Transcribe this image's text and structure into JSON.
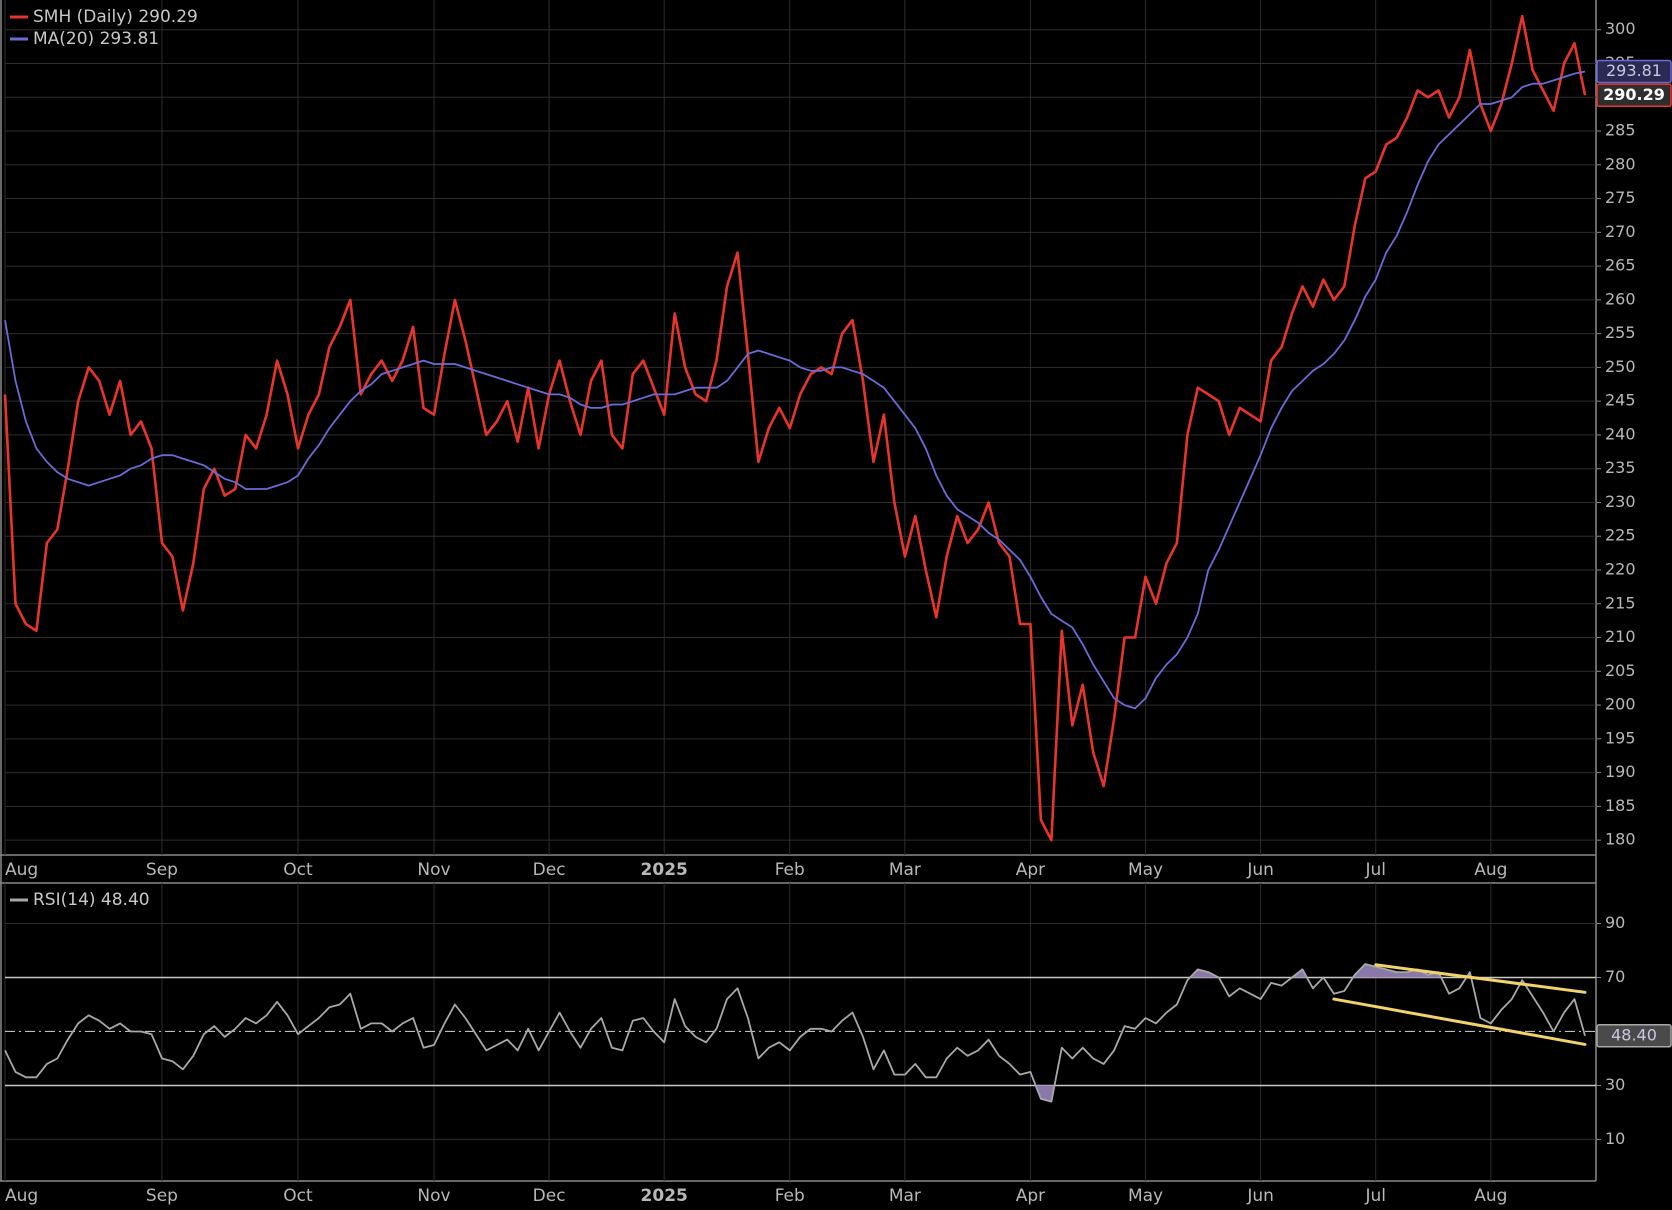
{
  "chart_data": [
    {
      "type": "line",
      "categories": [
        "Aug",
        null,
        null,
        null,
        null,
        null,
        null,
        null,
        null,
        null,
        null,
        null,
        null,
        null,
        null,
        "Sep",
        null,
        null,
        null,
        null,
        null,
        null,
        null,
        null,
        null,
        null,
        null,
        null,
        "Oct",
        null,
        null,
        null,
        null,
        null,
        null,
        null,
        null,
        null,
        null,
        null,
        null,
        "Nov",
        null,
        null,
        null,
        null,
        null,
        null,
        null,
        null,
        null,
        null,
        "Dec",
        null,
        null,
        null,
        null,
        null,
        null,
        null,
        null,
        null,
        null,
        "2025",
        null,
        null,
        null,
        null,
        null,
        null,
        null,
        null,
        null,
        null,
        null,
        "Feb",
        null,
        null,
        null,
        null,
        null,
        null,
        null,
        null,
        null,
        null,
        "Mar",
        null,
        null,
        null,
        null,
        null,
        null,
        null,
        null,
        null,
        null,
        null,
        "Apr",
        null,
        null,
        null,
        null,
        null,
        null,
        null,
        null,
        null,
        null,
        "May",
        null,
        null,
        null,
        null,
        null,
        null,
        null,
        null,
        null,
        null,
        "Jun",
        null,
        null,
        null,
        null,
        null,
        null,
        null,
        null,
        null,
        null,
        "Jul",
        null,
        null,
        null,
        null,
        null,
        null,
        null,
        null,
        null,
        null,
        "Aug",
        null,
        null,
        null,
        null,
        null,
        null,
        null,
        null,
        null
      ],
      "series": [
        {
          "name": "SMH (Daily)",
          "color": "#e8352b",
          "last_label": "290.29",
          "values": [
            246,
            215,
            212,
            211,
            224,
            226,
            235,
            245,
            250,
            248,
            243,
            248,
            240,
            242,
            238,
            224,
            222,
            214,
            221,
            232,
            235,
            231,
            232,
            240,
            238,
            243,
            251,
            246,
            238,
            243,
            246,
            253,
            256,
            260,
            246,
            249,
            251,
            248,
            251,
            256,
            244,
            243,
            252,
            260,
            254,
            247,
            240,
            242,
            245,
            239,
            247,
            238,
            246,
            251,
            245,
            240,
            248,
            251,
            240,
            238,
            249,
            251,
            247,
            243,
            258,
            250,
            246,
            245,
            251,
            262,
            267,
            252,
            236,
            241,
            244,
            241,
            246,
            249,
            250,
            249,
            255,
            257,
            248,
            236,
            243,
            230,
            222,
            228,
            220,
            213,
            222,
            228,
            224,
            226,
            230,
            224,
            222,
            212,
            212,
            183,
            180,
            211,
            197,
            203,
            193,
            188,
            198,
            210,
            210,
            219,
            215,
            221,
            224,
            240,
            247,
            246,
            245,
            240,
            244,
            243,
            242,
            251,
            253,
            258,
            262,
            259,
            263,
            260,
            262,
            271,
            278,
            279,
            283,
            284,
            287,
            291,
            290,
            291,
            287,
            290,
            297,
            289,
            285,
            289,
            295,
            302,
            294,
            291,
            288,
            295,
            298,
            290.29
          ]
        },
        {
          "name": "MA(20)",
          "color": "#6b6bd6",
          "last_label": "293.81",
          "values": [
            257,
            248,
            242,
            238,
            236,
            234.5,
            233.5,
            233,
            232.5,
            233,
            233.5,
            234,
            235,
            235.5,
            236.5,
            237,
            237,
            236.5,
            236,
            235.5,
            234.5,
            233.5,
            233,
            232,
            232,
            232,
            232.5,
            233,
            234,
            236.5,
            238.5,
            241,
            243,
            245,
            246.5,
            247.5,
            249,
            249.5,
            250,
            250.5,
            251,
            250.5,
            250.5,
            250.5,
            250,
            249.5,
            249,
            248.5,
            248,
            247.5,
            247,
            246.5,
            246,
            246,
            245.5,
            244.5,
            244,
            244,
            244.5,
            244.5,
            245,
            245.5,
            246,
            246,
            246,
            246.5,
            247,
            247,
            247,
            248,
            250,
            252,
            252.5,
            252,
            251.5,
            251,
            250,
            249.5,
            249.5,
            250,
            250,
            249.5,
            249,
            248,
            247,
            245,
            243,
            241,
            238,
            234,
            231,
            229,
            228,
            227,
            225.5,
            224.5,
            223,
            221.5,
            219,
            216,
            213.5,
            212.5,
            211.5,
            209,
            206,
            203.5,
            201,
            200,
            199.5,
            201,
            204,
            206,
            207.5,
            210,
            213.5,
            220,
            223,
            226.5,
            230,
            233.5,
            237,
            241,
            244,
            246.5,
            248,
            249.5,
            250.5,
            252,
            254,
            257,
            260.5,
            263,
            267,
            269.5,
            273,
            277,
            280.5,
            283,
            284.5,
            286,
            287.5,
            289,
            289,
            289.5,
            290,
            291.5,
            292,
            292,
            292.5,
            293,
            293.5,
            293.81
          ]
        }
      ],
      "ylim": [
        177.8,
        304.4
      ],
      "yticks": [
        180,
        185,
        190,
        195,
        200,
        205,
        210,
        215,
        220,
        225,
        230,
        235,
        240,
        245,
        250,
        255,
        260,
        265,
        270,
        275,
        280,
        285,
        290,
        295,
        300
      ],
      "grid": true
    },
    {
      "type": "line",
      "categories": [
        "Aug",
        null,
        null,
        null,
        null,
        null,
        null,
        null,
        null,
        null,
        null,
        null,
        null,
        null,
        null,
        "Sep",
        null,
        null,
        null,
        null,
        null,
        null,
        null,
        null,
        null,
        null,
        null,
        null,
        "Oct",
        null,
        null,
        null,
        null,
        null,
        null,
        null,
        null,
        null,
        null,
        null,
        null,
        "Nov",
        null,
        null,
        null,
        null,
        null,
        null,
        null,
        null,
        null,
        null,
        "Dec",
        null,
        null,
        null,
        null,
        null,
        null,
        null,
        null,
        null,
        null,
        "2025",
        null,
        null,
        null,
        null,
        null,
        null,
        null,
        null,
        null,
        null,
        null,
        "Feb",
        null,
        null,
        null,
        null,
        null,
        null,
        null,
        null,
        null,
        null,
        "Mar",
        null,
        null,
        null,
        null,
        null,
        null,
        null,
        null,
        null,
        null,
        null,
        "Apr",
        null,
        null,
        null,
        null,
        null,
        null,
        null,
        null,
        null,
        null,
        "May",
        null,
        null,
        null,
        null,
        null,
        null,
        null,
        null,
        null,
        null,
        "Jun",
        null,
        null,
        null,
        null,
        null,
        null,
        null,
        null,
        null,
        null,
        "Jul",
        null,
        null,
        null,
        null,
        null,
        null,
        null,
        null,
        null,
        null,
        "Aug",
        null,
        null,
        null,
        null,
        null,
        null,
        null,
        null,
        null
      ],
      "series": [
        {
          "name": "RSI(14)",
          "color": "#a8a8a8",
          "last_label": "48.40",
          "values": [
            43,
            35,
            33,
            33,
            38,
            40,
            47,
            53,
            56,
            54,
            51,
            53,
            50,
            50,
            49,
            40,
            39,
            36,
            41,
            49,
            52,
            48,
            51,
            55,
            53,
            56,
            61,
            56,
            49,
            52,
            55,
            59,
            60,
            64,
            51,
            53,
            53,
            50,
            53,
            55,
            44,
            45,
            53,
            60,
            55,
            49,
            43,
            45,
            47,
            43,
            51,
            43,
            50,
            57,
            50,
            44,
            51,
            55,
            44,
            43,
            54,
            55,
            50,
            46,
            62,
            52,
            48,
            46,
            51,
            62,
            66,
            55,
            40,
            44,
            46,
            43,
            48,
            51,
            51,
            50,
            54,
            57,
            48,
            36,
            43,
            34,
            34,
            38,
            33,
            33,
            40,
            44,
            41,
            43,
            47,
            41,
            38,
            34,
            35,
            25,
            24,
            44,
            40,
            44,
            40,
            38,
            43,
            52,
            51,
            55,
            53,
            57,
            60,
            69,
            73,
            72,
            70,
            63,
            66,
            64,
            62,
            68,
            67,
            70,
            73,
            66,
            70,
            64,
            65,
            71,
            75,
            74,
            73,
            72,
            72,
            73,
            71,
            72,
            64,
            66,
            72,
            55,
            53,
            58,
            62,
            69,
            63,
            57,
            50,
            57,
            62,
            48.4
          ]
        }
      ],
      "ylim": [
        -5.4,
        105
      ],
      "yticks": [
        10,
        30,
        70,
        90
      ],
      "reference_lines": [
        30,
        70
      ],
      "midline": 50,
      "fill_color": "#8a78a8",
      "trendlines": [
        {
          "color": "#f2d36b",
          "points": [
            [
              131,
              74.7
            ],
            [
              151,
              64.5
            ]
          ]
        },
        {
          "color": "#f2d36b",
          "points": [
            [
              127,
              62
            ],
            [
              151,
              45.2
            ]
          ]
        }
      ],
      "grid": true
    }
  ]
}
